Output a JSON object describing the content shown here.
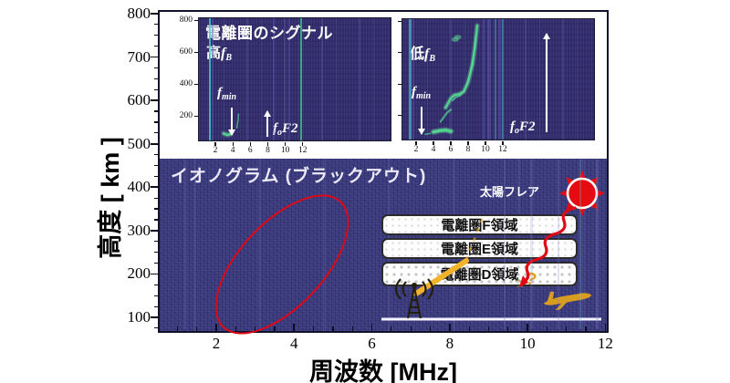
{
  "figure": {
    "ylabel": "高度 [ km ]",
    "xlabel": "周波数 [MHz]",
    "main_label": "イオノグラム (ブラックアウト)",
    "flare_label": "太陽フレア",
    "question_mark": "?",
    "regions": [
      "電離圏F領域",
      "電離圏E領域",
      "電離圏D領域"
    ],
    "icons": [
      "sun-flare-icon",
      "zigzag-xray-arrow",
      "radio-antenna-icon",
      "radio-beam",
      "airplane-icon",
      "ground-line"
    ],
    "colors": {
      "ionogram_bg": "#3d3d82",
      "inset_bg": "#332d6d",
      "trace_green": "#52d88e",
      "flare_red": "#e30613",
      "beam_yellow": "#f2b32b",
      "plane_orange": "#d79c20"
    }
  },
  "chart_data": {
    "type": "heatmap",
    "title": "",
    "xlabel": "周波数 [MHz]",
    "ylabel": "高度 [ km ]",
    "xlim": [
      0.55,
      12.05
    ],
    "ylim": [
      70,
      810
    ],
    "x_ticks": [
      2,
      4,
      6,
      8,
      10,
      12
    ],
    "y_ticks": [
      800,
      700,
      600,
      500,
      400,
      300,
      200,
      100
    ],
    "grid": false,
    "main_area_label": "イオノグラム (ブラックアウト)",
    "main_area_content": "blackout ionogram: noise only, no echo traces; red ellipse highlights missing echoes near 2.3-4.2 MHz / 80-390 km",
    "accent_lines": [
      {
        "f": 1.2,
        "color": "#8a86c8",
        "alpha": 0.2,
        "w": 2
      },
      {
        "f": 9.4,
        "color": "#8a86c8",
        "alpha": 0.22,
        "w": 2
      },
      {
        "f": 10.1,
        "color": "#8a86c8",
        "alpha": 0.2,
        "w": 3
      },
      {
        "f": 10.8,
        "color": "#8a86c8",
        "alpha": 0.22,
        "w": 2
      },
      {
        "f": 11.35,
        "color": "#6fc6c0",
        "alpha": 0.25,
        "w": 2
      },
      {
        "f": 11.8,
        "color": "#8a86c8",
        "alpha": 0.25,
        "w": 3
      }
    ],
    "insets": [
      {
        "title": "電離圏のシグナル",
        "condition": {
          "prefix": "高",
          "var": "f",
          "sub": "B"
        },
        "x_ticks": [
          2,
          4,
          6,
          8,
          10,
          12
        ],
        "y_ticks": [
          800,
          600,
          400,
          200
        ],
        "labels": {
          "fmin": {
            "var": "f",
            "sub": "min"
          },
          "fof2": {
            "var": "f",
            "sub": "o",
            "rest": "F2"
          }
        },
        "fmin_mhz": 2.8,
        "fof2_mhz": 4.9,
        "traces": [
          {
            "points": [
              [
                2.85,
                95
              ],
              [
                3.3,
                86
              ],
              [
                3.65,
                92
              ]
            ],
            "w": 2.5,
            "bright": true
          },
          {
            "points": [
              [
                4.35,
                130
              ],
              [
                4.5,
                178
              ],
              [
                4.55,
                218
              ]
            ],
            "w": 1.5,
            "bright": false
          }
        ],
        "blobs": [],
        "accent_lines": [
          {
            "f": 1.3,
            "color": "#3fd0c8",
            "alpha": 0.8,
            "w": 2
          },
          {
            "f": 1.55,
            "color": "#5a54b0",
            "alpha": 0.5,
            "w": 2
          },
          {
            "f": 8.6,
            "color": "#6a64c0",
            "alpha": 0.35,
            "w": 2
          },
          {
            "f": 10.4,
            "color": "#6a64c0",
            "alpha": 0.3,
            "w": 2
          },
          {
            "f": 11.75,
            "color": "#46c98c",
            "alpha": 0.75,
            "w": 2
          }
        ]
      },
      {
        "title": "",
        "condition": {
          "prefix": "低",
          "var": "f",
          "sub": "B"
        },
        "x_ticks": [
          2,
          4,
          6,
          8,
          10,
          12
        ],
        "y_ticks": [
          800,
          600,
          400,
          200
        ],
        "labels": {
          "fmin": {
            "var": "f",
            "sub": "min"
          },
          "fof2": {
            "var": "f",
            "sub": "o",
            "rest": "F2"
          }
        },
        "fmin_mhz": 3.0,
        "fof2_mhz": 8.2,
        "traces": [
          {
            "points": [
              [
                2.95,
                85
              ],
              [
                3.5,
                90
              ]
            ],
            "w": 1.5,
            "bright": false
          },
          {
            "points": [
              [
                3.9,
                100
              ],
              [
                4.6,
                108
              ],
              [
                5.3,
                112
              ],
              [
                5.9,
                104
              ]
            ],
            "w": 3.5,
            "bright": true
          },
          {
            "points": [
              [
                4.7,
                165
              ],
              [
                5.1,
                195
              ],
              [
                5.5,
                225
              ],
              [
                5.9,
                242
              ]
            ],
            "w": 2.2,
            "bright": false
          },
          {
            "points": [
              [
                5.3,
                255
              ],
              [
                5.9,
                315
              ],
              [
                6.3,
                335
              ],
              [
                6.9,
                342
              ],
              [
                7.4,
                358
              ],
              [
                7.9,
                420
              ],
              [
                8.4,
                530
              ],
              [
                8.7,
                650
              ],
              [
                8.95,
                780
              ]
            ],
            "w": 2.4,
            "bright": true
          },
          {
            "points": [
              [
                6.1,
                300
              ],
              [
                6.5,
                322
              ],
              [
                7.0,
                332
              ],
              [
                7.6,
                378
              ],
              [
                8.1,
                470
              ],
              [
                8.5,
                590
              ],
              [
                8.8,
                720
              ]
            ],
            "w": 1.8,
            "bright": false
          }
        ],
        "blobs": [
          {
            "f": 6.4,
            "km": 690
          },
          {
            "f": 6.7,
            "km": 705
          }
        ],
        "accent_lines": [
          {
            "f": 1.25,
            "color": "#4aa8c8",
            "alpha": 0.8,
            "w": 3
          },
          {
            "f": 9.7,
            "color": "#5a54b8",
            "alpha": 0.5,
            "w": 2
          },
          {
            "f": 10.4,
            "color": "#5a54b8",
            "alpha": 0.45,
            "w": 3
          },
          {
            "f": 11.0,
            "color": "#4ac0b8",
            "alpha": 0.4,
            "w": 2
          },
          {
            "f": 11.5,
            "color": "#5a54b8",
            "alpha": 0.5,
            "w": 3
          },
          {
            "f": 11.85,
            "color": "#4ac0b8",
            "alpha": 0.45,
            "w": 2
          }
        ]
      }
    ]
  }
}
